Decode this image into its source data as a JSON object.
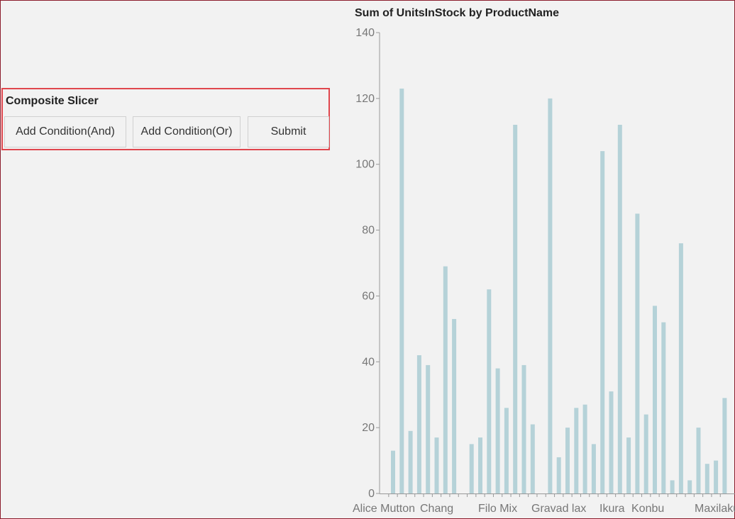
{
  "slicer": {
    "title": "Composite Slicer",
    "buttons": {
      "and_label": "Add Condition(And)",
      "or_label": "Add Condition(Or)",
      "submit_label": "Submit"
    }
  },
  "chart_data": {
    "type": "bar",
    "title": "Sum of UnitsInStock by ProductName",
    "xlabel": "",
    "ylabel": "",
    "ylim": [
      0,
      140
    ],
    "yticks": [
      0,
      20,
      40,
      60,
      80,
      100,
      120,
      140
    ],
    "bar_color": "#b5d2d8",
    "visible_category_labels": [
      "Alice Mutton",
      "Chang",
      "Filo Mix",
      "Gravad lax",
      "Ikura",
      "Konbu",
      "Maxilaku"
    ],
    "values": [
      13,
      123,
      19,
      42,
      39,
      17,
      69,
      53,
      0,
      15,
      17,
      62,
      38,
      26,
      112,
      39,
      21,
      0,
      120,
      11,
      20,
      26,
      27,
      15,
      104,
      31,
      112,
      17,
      85,
      24,
      57,
      52,
      4,
      76,
      4,
      20,
      9,
      10,
      29
    ]
  }
}
